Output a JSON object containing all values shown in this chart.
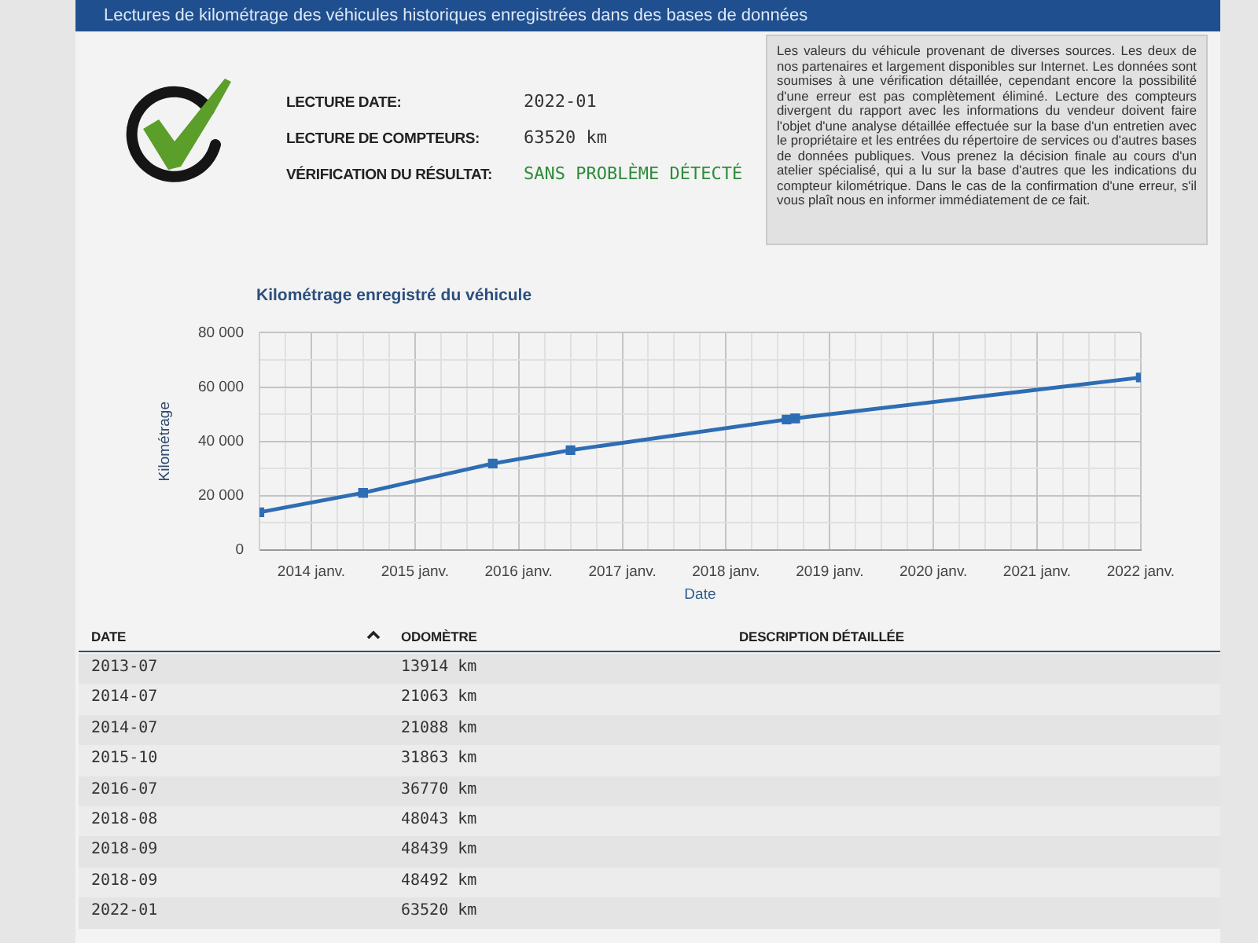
{
  "chart_data": [
    {
      "type": "line",
      "title": "Kilométrage enregistré du véhicule",
      "xlabel": "Date",
      "ylabel": "Kilométrage",
      "x": [
        "2013-07",
        "2014-07",
        "2014-07",
        "2015-10",
        "2016-07",
        "2018-08",
        "2018-09",
        "2018-09",
        "2022-01"
      ],
      "series": [
        {
          "color": "#2e6db4",
          "values": [
            13914,
            21063,
            21088,
            31863,
            36770,
            48043,
            48439,
            48492,
            63520
          ]
        }
      ],
      "xlim": [
        "2013-07",
        "2022-01"
      ],
      "xticks": [
        {
          "value": "2013-10",
          "label": null
        },
        {
          "value": "2014-01",
          "label": "2014 janv."
        },
        {
          "value": "2014-04",
          "label": null
        },
        {
          "value": "2014-07",
          "label": null
        },
        {
          "value": "2014-10",
          "label": null
        },
        {
          "value": "2015-01",
          "label": "2015 janv."
        },
        {
          "value": "2015-04",
          "label": null
        },
        {
          "value": "2015-07",
          "label": null
        },
        {
          "value": "2015-10",
          "label": null
        },
        {
          "value": "2016-01",
          "label": "2016 janv."
        },
        {
          "value": "2016-04",
          "label": null
        },
        {
          "value": "2016-07",
          "label": null
        },
        {
          "value": "2016-10",
          "label": null
        },
        {
          "value": "2017-01",
          "label": "2017 janv."
        },
        {
          "value": "2017-04",
          "label": null
        },
        {
          "value": "2017-07",
          "label": null
        },
        {
          "value": "2017-10",
          "label": null
        },
        {
          "value": "2018-01",
          "label": "2018 janv."
        },
        {
          "value": "2018-04",
          "label": null
        },
        {
          "value": "2018-07",
          "label": null
        },
        {
          "value": "2018-10",
          "label": null
        },
        {
          "value": "2019-01",
          "label": "2019 janv."
        },
        {
          "value": "2019-04",
          "label": null
        },
        {
          "value": "2019-07",
          "label": null
        },
        {
          "value": "2019-10",
          "label": null
        },
        {
          "value": "2020-01",
          "label": "2020 janv."
        },
        {
          "value": "2020-04",
          "label": null
        },
        {
          "value": "2020-07",
          "label": null
        },
        {
          "value": "2020-10",
          "label": null
        },
        {
          "value": "2021-01",
          "label": "2021 janv."
        },
        {
          "value": "2021-04",
          "label": null
        },
        {
          "value": "2021-07",
          "label": null
        },
        {
          "value": "2021-10",
          "label": null
        },
        {
          "value": "2022-01",
          "label": "2022 janv."
        }
      ],
      "ylim": [
        0,
        80000
      ],
      "yticks": [
        0,
        {
          "value": 10000,
          "label": null
        },
        {
          "value": 20000,
          "label": "20 000"
        },
        {
          "value": 30000,
          "label": null
        },
        {
          "value": 40000,
          "label": "40 000"
        },
        {
          "value": 50000,
          "label": null
        },
        {
          "value": 60000,
          "label": "60 000"
        },
        {
          "value": 70000,
          "label": null
        },
        {
          "value": 80000,
          "label": "80 000"
        }
      ],
      "grid": true,
      "legend": false,
      "marker": "square",
      "line_style": "solid",
      "annotations": [
        "Lectures de kilométrage des véhicules historiques enregistrées dans des bases de données",
        "LECTURE DATE:",
        "2022-01",
        "LECTURE DE COMPTEURS:",
        "63520 km",
        "VÉRIFICATION DU RÉSULTAT:",
        "SANS PROBLÈME DÉTECTÉ",
        "Les valeurs du véhicule provenant de diverses sources. Les deux de nos partenaires et largement disponibles sur Internet. Les données sont soumises à une vérification détaillée, cependant encore la possibilité d'une erreur est pas complètement éliminé. Lecture des compteurs divergent du rapport avec les informations du vendeur doivent faire l'objet d'une analyse détaillée effectuée sur la base d'un entretien avec le propriétaire et les entrées du répertoire de services ou d'autres bases de données publiques. Vous prenez la décision finale au cours d'un atelier spécialisé, qui a lu sur la base d'autres que les indications du compteur kilométrique. Dans le cas de la confirmation d'une erreur, s'il vous plaît nous en informer immédiatement de ce fait."
      ]
    },
    {
      "type": "other",
      "annotations": [
        "DATE",
        "ODOMÈTRE",
        "DESCRIPTION DÉTAILLÉE",
        "2013-07",
        "13914 km",
        "2014-07",
        "21063 km",
        "2014-07",
        "21088 km",
        "2015-10",
        "31863 km",
        "2016-07",
        "36770 km",
        "2018-08",
        "48043 km",
        "2018-09",
        "48439 km",
        "2018-09",
        "48492 km",
        "2022-01",
        "63520 km"
      ]
    }
  ]
}
